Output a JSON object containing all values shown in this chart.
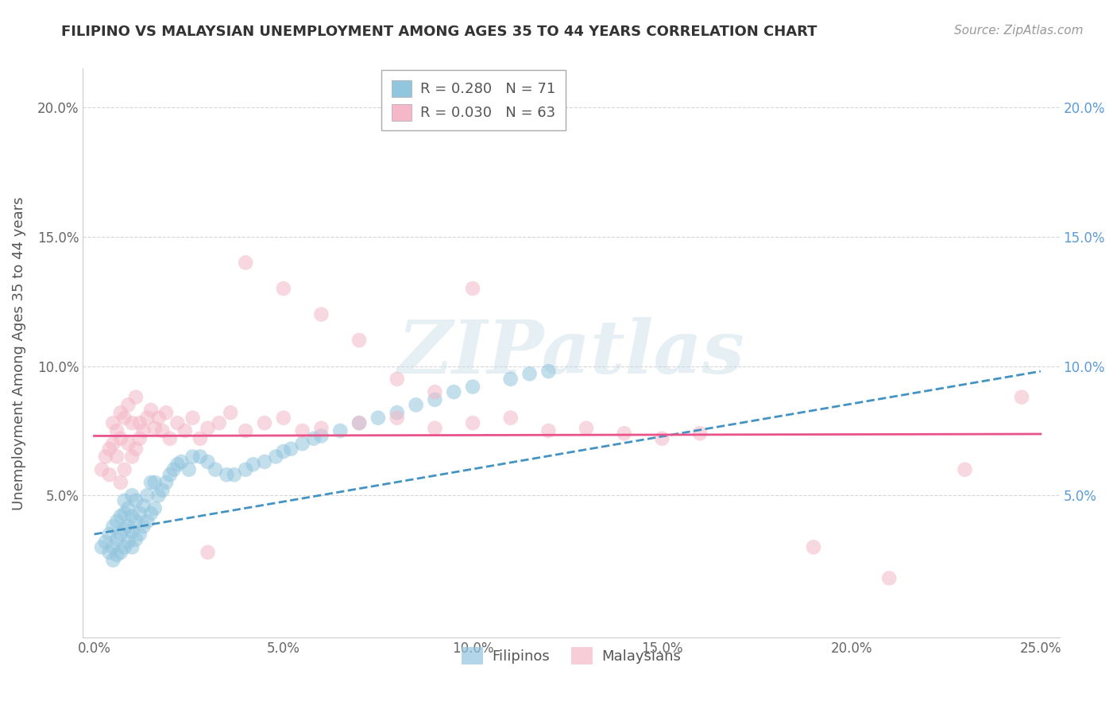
{
  "title": "FILIPINO VS MALAYSIAN UNEMPLOYMENT AMONG AGES 35 TO 44 YEARS CORRELATION CHART",
  "source": "Source: ZipAtlas.com",
  "ylabel": "Unemployment Among Ages 35 to 44 years",
  "xlim": [
    -0.003,
    0.255
  ],
  "ylim": [
    -0.005,
    0.215
  ],
  "xticks": [
    0.0,
    0.05,
    0.1,
    0.15,
    0.2,
    0.25
  ],
  "yticks": [
    0.05,
    0.1,
    0.15,
    0.2
  ],
  "xticklabels": [
    "0.0%",
    "5.0%",
    "10.0%",
    "15.0%",
    "20.0%",
    "25.0%"
  ],
  "yticklabels_left": [
    "5.0%",
    "10.0%",
    "15.0%",
    "20.0%"
  ],
  "yticklabels_right": [
    "5.0%",
    "10.0%",
    "15.0%",
    "20.0%"
  ],
  "legend_r1": "R = 0.280",
  "legend_n1": "N = 71",
  "legend_r2": "R = 0.030",
  "legend_n2": "N = 63",
  "legend_label1": "Filipinos",
  "legend_label2": "Malaysians",
  "color_filipino": "#92c5de",
  "color_malaysian": "#f4b8c8",
  "trendline_color_filipino": "#4393c3",
  "trendline_color_malaysian": "#e8538a",
  "right_tick_color": "#5b9bd5",
  "watermark_text": "ZIPatlas",
  "watermark_color": "#d8e8f0",
  "filipinos_x": [
    0.002,
    0.003,
    0.004,
    0.004,
    0.005,
    0.005,
    0.005,
    0.006,
    0.006,
    0.006,
    0.007,
    0.007,
    0.007,
    0.008,
    0.008,
    0.008,
    0.008,
    0.009,
    0.009,
    0.009,
    0.01,
    0.01,
    0.01,
    0.01,
    0.011,
    0.011,
    0.011,
    0.012,
    0.012,
    0.013,
    0.013,
    0.014,
    0.014,
    0.015,
    0.015,
    0.016,
    0.016,
    0.017,
    0.018,
    0.019,
    0.02,
    0.021,
    0.022,
    0.023,
    0.025,
    0.026,
    0.028,
    0.03,
    0.032,
    0.035,
    0.037,
    0.04,
    0.042,
    0.045,
    0.048,
    0.05,
    0.052,
    0.055,
    0.058,
    0.06,
    0.065,
    0.07,
    0.075,
    0.08,
    0.085,
    0.09,
    0.095,
    0.1,
    0.11,
    0.115,
    0.12
  ],
  "filipinos_y": [
    0.03,
    0.032,
    0.028,
    0.035,
    0.025,
    0.03,
    0.038,
    0.027,
    0.033,
    0.04,
    0.028,
    0.035,
    0.042,
    0.03,
    0.037,
    0.043,
    0.048,
    0.032,
    0.038,
    0.045,
    0.03,
    0.036,
    0.042,
    0.05,
    0.033,
    0.04,
    0.048,
    0.035,
    0.043,
    0.038,
    0.046,
    0.04,
    0.05,
    0.043,
    0.055,
    0.045,
    0.055,
    0.05,
    0.052,
    0.055,
    0.058,
    0.06,
    0.062,
    0.063,
    0.06,
    0.065,
    0.065,
    0.063,
    0.06,
    0.058,
    0.058,
    0.06,
    0.062,
    0.063,
    0.065,
    0.067,
    0.068,
    0.07,
    0.072,
    0.073,
    0.075,
    0.078,
    0.08,
    0.082,
    0.085,
    0.087,
    0.09,
    0.092,
    0.095,
    0.097,
    0.098
  ],
  "malaysians_x": [
    0.002,
    0.003,
    0.004,
    0.004,
    0.005,
    0.005,
    0.006,
    0.006,
    0.007,
    0.007,
    0.007,
    0.008,
    0.008,
    0.009,
    0.009,
    0.01,
    0.01,
    0.011,
    0.011,
    0.012,
    0.012,
    0.013,
    0.014,
    0.015,
    0.016,
    0.017,
    0.018,
    0.019,
    0.02,
    0.022,
    0.024,
    0.026,
    0.028,
    0.03,
    0.033,
    0.036,
    0.04,
    0.045,
    0.05,
    0.055,
    0.06,
    0.07,
    0.08,
    0.09,
    0.1,
    0.11,
    0.12,
    0.13,
    0.14,
    0.15,
    0.16,
    0.19,
    0.21,
    0.23,
    0.245,
    0.03,
    0.04,
    0.05,
    0.06,
    0.07,
    0.08,
    0.09,
    0.1
  ],
  "malaysians_y": [
    0.06,
    0.065,
    0.058,
    0.068,
    0.07,
    0.078,
    0.065,
    0.075,
    0.055,
    0.072,
    0.082,
    0.06,
    0.08,
    0.07,
    0.085,
    0.065,
    0.078,
    0.068,
    0.088,
    0.072,
    0.078,
    0.075,
    0.08,
    0.083,
    0.076,
    0.08,
    0.075,
    0.082,
    0.072,
    0.078,
    0.075,
    0.08,
    0.072,
    0.076,
    0.078,
    0.082,
    0.075,
    0.078,
    0.08,
    0.075,
    0.076,
    0.078,
    0.08,
    0.076,
    0.078,
    0.08,
    0.075,
    0.076,
    0.074,
    0.072,
    0.074,
    0.03,
    0.018,
    0.06,
    0.088,
    0.028,
    0.14,
    0.13,
    0.12,
    0.11,
    0.095,
    0.09,
    0.13
  ]
}
